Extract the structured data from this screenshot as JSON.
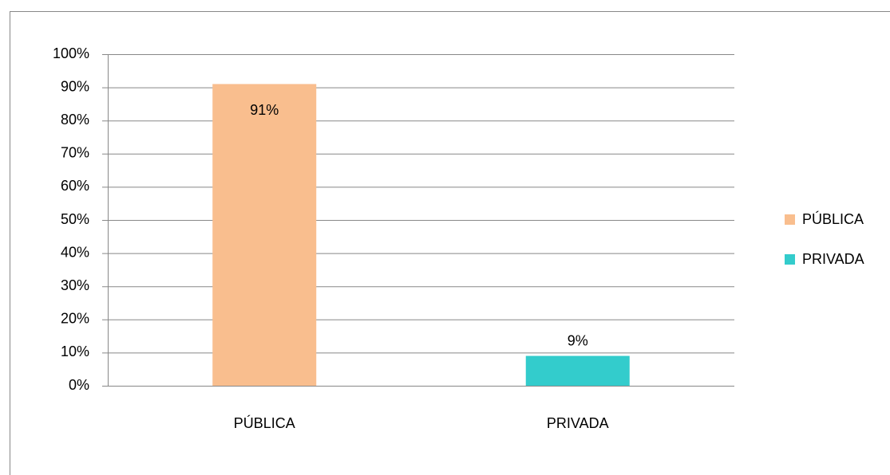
{
  "chart_data": {
    "type": "bar",
    "categories": [
      "PÚBLICA",
      "PRIVADA"
    ],
    "series": [
      {
        "name": "PÚBLICA",
        "color": "#f9be8e",
        "values": [
          91,
          null
        ],
        "value_labels": [
          "91%",
          null
        ]
      },
      {
        "name": "PRIVADA",
        "color": "#33cccc",
        "values": [
          null,
          9
        ],
        "value_labels": [
          null,
          "9%"
        ]
      }
    ],
    "ylim": [
      0,
      100
    ],
    "yticks": [
      {
        "value": 0,
        "label": "0%"
      },
      {
        "value": 10,
        "label": "10%"
      },
      {
        "value": 20,
        "label": "20%"
      },
      {
        "value": 30,
        "label": "30%"
      },
      {
        "value": 40,
        "label": "40%"
      },
      {
        "value": 50,
        "label": "50%"
      },
      {
        "value": 60,
        "label": "60%"
      },
      {
        "value": 70,
        "label": "70%"
      },
      {
        "value": 80,
        "label": "80%"
      },
      {
        "value": 90,
        "label": "90%"
      },
      {
        "value": 100,
        "label": "100%"
      }
    ],
    "grid": true,
    "legend": "right"
  }
}
